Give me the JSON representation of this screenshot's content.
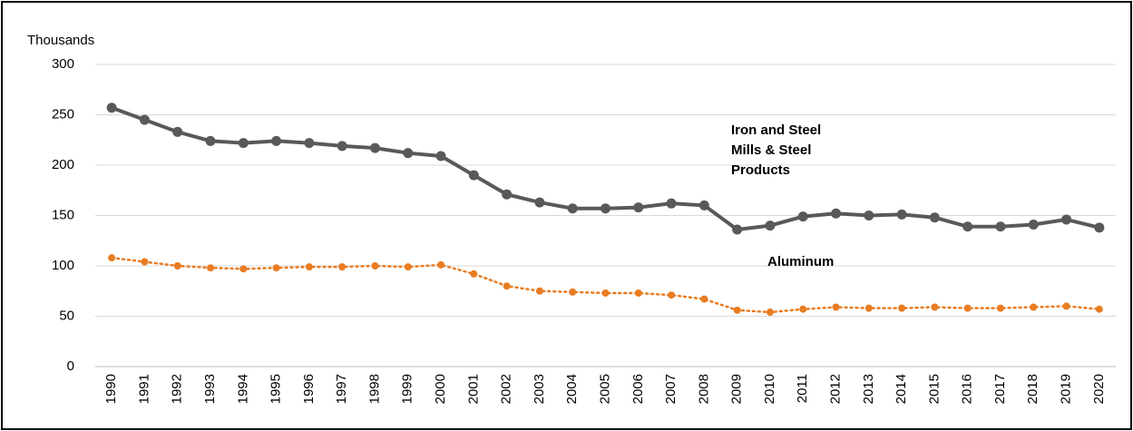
{
  "chart_data": {
    "type": "line",
    "y_label": "Thousands",
    "categories": [
      "1990",
      "1991",
      "1992",
      "1993",
      "1994",
      "1995",
      "1996",
      "1997",
      "1998",
      "1999",
      "2000",
      "2001",
      "2002",
      "2003",
      "2004",
      "2005",
      "2006",
      "2007",
      "2008",
      "2009",
      "2010",
      "2011",
      "2012",
      "2013",
      "2014",
      "2015",
      "2016",
      "2017",
      "2018",
      "2019",
      "2020"
    ],
    "series": [
      {
        "name": "Iron and Steel Mills & Steel Products",
        "color": "#595959",
        "style": "solid",
        "values": [
          257,
          245,
          233,
          224,
          222,
          224,
          222,
          219,
          217,
          212,
          209,
          190,
          171,
          163,
          157,
          157,
          158,
          162,
          160,
          136,
          140,
          149,
          152,
          150,
          151,
          148,
          139,
          139,
          141,
          146,
          138
        ]
      },
      {
        "name": "Aluminum",
        "color": "#e97c22",
        "style": "dotted",
        "values": [
          108,
          104,
          100,
          98,
          97,
          98,
          99,
          99,
          100,
          99,
          101,
          92,
          80,
          75,
          74,
          73,
          73,
          71,
          67,
          56,
          54,
          57,
          59,
          58,
          58,
          59,
          58,
          58,
          59,
          60,
          57
        ]
      }
    ],
    "ylim": [
      0,
      300
    ],
    "yticks": [
      0,
      50,
      100,
      150,
      200,
      250,
      300
    ],
    "grid": true
  }
}
